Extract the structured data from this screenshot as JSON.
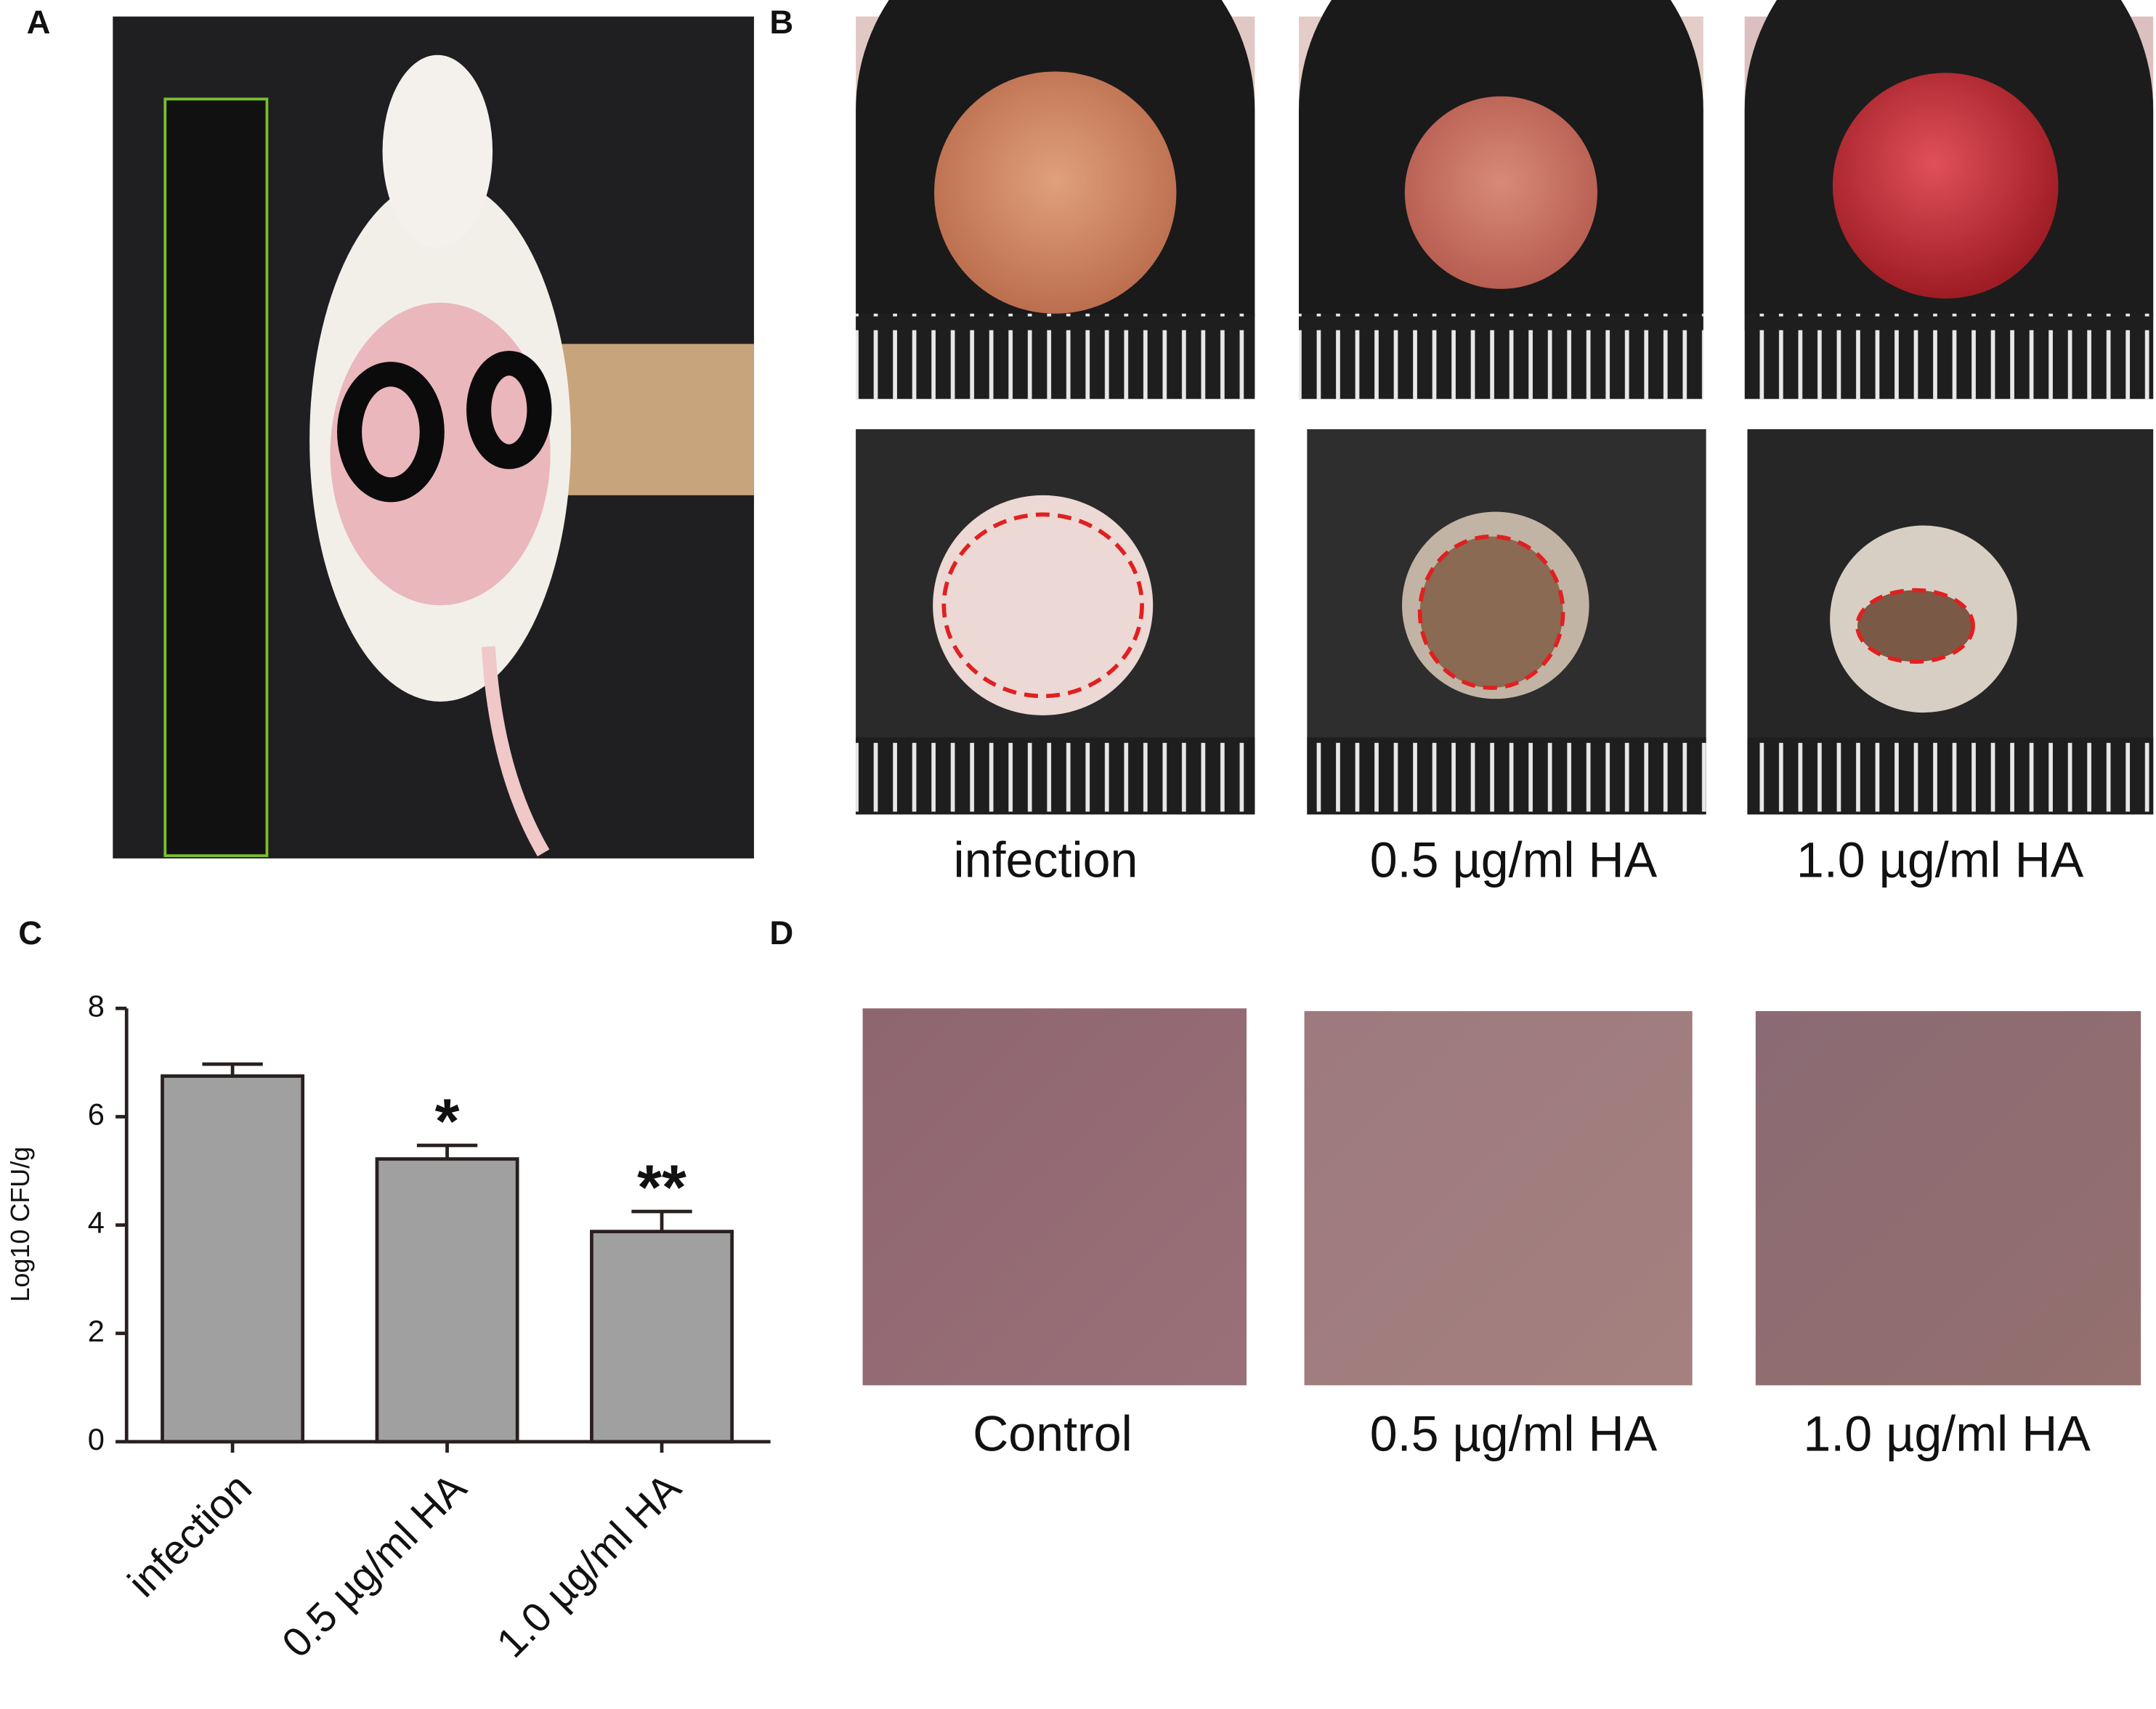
{
  "panels": {
    "a": {
      "label": "A"
    },
    "b": {
      "label": "B",
      "captions": [
        "infection",
        "0.5 µg/ml HA",
        "1.0 µg/ml HA"
      ]
    },
    "c": {
      "label": "C"
    },
    "d": {
      "label": "D",
      "captions": [
        "Control",
        "0.5 µg/ml HA",
        "1.0 µg/ml HA"
      ]
    }
  },
  "chart_data": {
    "type": "bar",
    "y_label": "Log10 CFU/g",
    "categories": [
      "infection",
      "0.5 µg/ml HA",
      "1.0 µg/ml HA"
    ],
    "values": [
      6.75,
      5.22,
      3.88
    ],
    "errors": [
      0.22,
      0.25,
      0.37
    ],
    "significance": [
      null,
      "*",
      "**"
    ],
    "color": "#a0a0a0",
    "ylim": [
      0,
      8
    ],
    "yticks": [
      0,
      2,
      4,
      6,
      8
    ],
    "grid": false
  }
}
